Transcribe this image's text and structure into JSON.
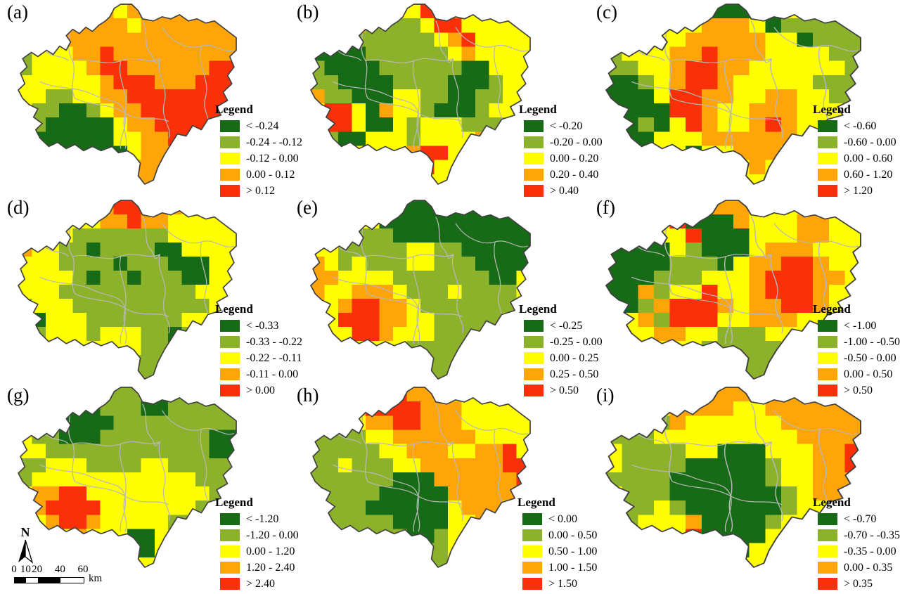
{
  "colors": {
    "background": "#ffffff",
    "classes": [
      "#176b17",
      "#8cb22b",
      "#ffff00",
      "#ffa409",
      "#f93008"
    ],
    "outer_boundary": "#404040",
    "inner_boundary": "#b8b8b8"
  },
  "north_arrow": {
    "label": "N"
  },
  "scale_bar": {
    "tick_labels": [
      "0",
      "10",
      "20",
      "40",
      "60"
    ],
    "tick_values_km": [
      0,
      10,
      20,
      40,
      60
    ],
    "unit": "km"
  },
  "panels": [
    {
      "id": "a",
      "label": "(a)",
      "legend_title": "Legend",
      "legend": [
        {
          "class": 1,
          "range": "< -0.24"
        },
        {
          "class": 2,
          "range": "-0.24 - -0.12"
        },
        {
          "class": 3,
          "range": "-0.12 - 0.00"
        },
        {
          "class": 4,
          "range": "0.00 - 0.12"
        },
        {
          "class": 5,
          "range": "> 0.12"
        }
      ],
      "grid": [
        "4444444344444444",
        "4444444434444444",
        "2334444444444444",
        "2333445444444444",
        "2333345544444455",
        "3333334555444555",
        "3322334455555555",
        "3221123445555555",
        "3211111344555554",
        "2111111334455444",
        "3311111134444444",
        "4431111344444444",
        "4444113444444444"
      ]
    },
    {
      "id": "b",
      "label": "(b)",
      "legend_title": "Legend",
      "legend": [
        {
          "class": 1,
          "range": "< -0.20"
        },
        {
          "class": 2,
          "range": "-0.20 - 0.00"
        },
        {
          "class": 3,
          "range": "0.00 - 0.20"
        },
        {
          "class": 4,
          "range": "0.20 - 0.40"
        },
        {
          "class": 5,
          "range": "> 0.40"
        }
      ],
      "grid": [
        "3333333355433333",
        "3334222235533333",
        "3112222223453333",
        "1111222222343333",
        "2111122222211333",
        "2211112222111233",
        "4221113322112233",
        "3553143321112333",
        "2553113233322243",
        "2211333233334553",
        "2223333455334553",
        "3333334553333433",
        "3333333433333333"
      ]
    },
    {
      "id": "c",
      "label": "(c)",
      "legend_title": "Legend",
      "legend": [
        {
          "class": 1,
          "range": "< -0.60"
        },
        {
          "class": 2,
          "range": "-0.60 - 0.00"
        },
        {
          "class": 3,
          "range": "0.00 - 0.60"
        },
        {
          "class": 4,
          "range": "0.60 - 1.20"
        },
        {
          "class": 5,
          "range": "> 1.20"
        }
      ],
      "grid": [
        "3333331111133333",
        "3533334443122222",
        "3553344444331222",
        "2333445444333322",
        "2233455443333332",
        "1123455433333222",
        "1113554433443322",
        "1111554334443332",
        "1121354334543332",
        "1113334444443222",
        "3333313344432222",
        "3333311334322222",
        "3333333333222222"
      ]
    },
    {
      "id": "d",
      "label": "(d)",
      "legend_title": "Legend",
      "legend": [
        {
          "class": 1,
          "range": "< -0.33"
        },
        {
          "class": 2,
          "range": "-0.33 - -0.22"
        },
        {
          "class": 3,
          "range": "-0.22 - -0.11"
        },
        {
          "class": 4,
          "range": "-0.11 - 0.00"
        },
        {
          "class": 5,
          "range": "> 0.00"
        }
      ],
      "grid": [
        "3335444554443333",
        "3343334454433333",
        "4333222222233333",
        "4332212222113333",
        "3332222122211133",
        "3333212212221133",
        "3332222222222333",
        "2333222222222233",
        "2133322222223333",
        "2233323332212333",
        "2223333332212233",
        "3333333322222333",
        "3333333322223333"
      ]
    },
    {
      "id": "e",
      "label": "(e)",
      "legend_title": "Legend",
      "legend": [
        {
          "class": 1,
          "range": "< -0.25"
        },
        {
          "class": 2,
          "range": "-0.25 - 0.00"
        },
        {
          "class": 3,
          "range": "0.00 - 0.25"
        },
        {
          "class": 4,
          "range": "0.25 - 0.50"
        },
        {
          "class": 5,
          "range": "> 0.50"
        }
      ],
      "grid": [
        "3333111111111111",
        "4333311111111111",
        "3332221111111111",
        "3322222332211111",
        "4323222332221111",
        "4433332222222113",
        "4334443222322223",
        "4345544322222222",
        "3355544332222232",
        "3335543332222222",
        "3333333222222222",
        "3333332222222222",
        "3333222222222222"
      ]
    },
    {
      "id": "f",
      "label": "(f)",
      "legend_title": "Legend",
      "legend": [
        {
          "class": 1,
          "range": "< -1.00"
        },
        {
          "class": 2,
          "range": "-1.00 - -0.50"
        },
        {
          "class": 3,
          "range": "-0.50 - 0.00"
        },
        {
          "class": 4,
          "range": "0.00 - 0.50"
        },
        {
          "class": 5,
          "range": "> 0.50"
        }
      ],
      "grid": [
        "3333544443333333",
        "3333511143334433",
        "1113351113334433",
        "1111321113444333",
        "1111222134455433",
        "1112223334555443",
        "1142335334555433",
        "1124555434455432",
        "3342555334443312",
        "3334433222333332",
        "3333332222233333",
        "3333333222223333",
        "3333333322233333"
      ]
    },
    {
      "id": "g",
      "label": "(g)",
      "legend_title": "Legend",
      "legend": [
        {
          "class": 1,
          "range": "< -1.20"
        },
        {
          "class": 2,
          "range": "-1.20 - 0.00"
        },
        {
          "class": 3,
          "range": "0.00 - 1.20"
        },
        {
          "class": 4,
          "range": "1.20 - 2.40"
        },
        {
          "class": 5,
          "range": "> 2.40"
        }
      ],
      "grid": [
        "2222222222122222",
        "2221112221122222",
        "3321111222222222",
        "3221112222222211",
        "3322222222222211",
        "2233322223322222",
        "2333333333333222",
        "3445533333333322",
        "3455553333333222",
        "3345543333322222",
        "3333433311322222",
        "3333333311322222",
        "3333333333222222"
      ]
    },
    {
      "id": "h",
      "label": "(h)",
      "legend_title": "Legend",
      "legend": [
        {
          "class": 1,
          "range": "< 0.00"
        },
        {
          "class": 2,
          "range": "0.00 - 0.50"
        },
        {
          "class": 3,
          "range": "0.50 - 1.00"
        },
        {
          "class": 4,
          "range": "1.00 - 1.50"
        },
        {
          "class": 5,
          "range": "> 1.50"
        }
      ],
      "grid": [
        "3334555443333333",
        "2234555544433333",
        "2223445544433333",
        "2222334444443333",
        "2222233444334453",
        "2232223344444455",
        "2222221114444445",
        "2222211111444443",
        "2222111111344433",
        "2222221111334332",
        "2222222112332222",
        "2222222222332222",
        "2222222222222222"
      ]
    },
    {
      "id": "i",
      "label": "(i)",
      "legend_title": "Legend",
      "legend": [
        {
          "class": 1,
          "range": "< -0.70"
        },
        {
          "class": 2,
          "range": "-0.70 - -0.35"
        },
        {
          "class": 3,
          "range": "-0.35 - 0.00"
        },
        {
          "class": 4,
          "range": "0.00 - 0.35"
        },
        {
          "class": 5,
          "range": "> 0.35"
        }
      ],
      "grid": [
        "2223344444444444",
        "2233444433444444",
        "2122433333344444",
        "2223333333334444",
        "3222233111333445",
        "3222211111233445",
        "2222111111233444",
        "3222111111123444",
        "2223211111123344",
        "2233341111233344",
        "3333351111333433",
        "3333333113333333",
        "3333333333333333"
      ]
    }
  ]
}
